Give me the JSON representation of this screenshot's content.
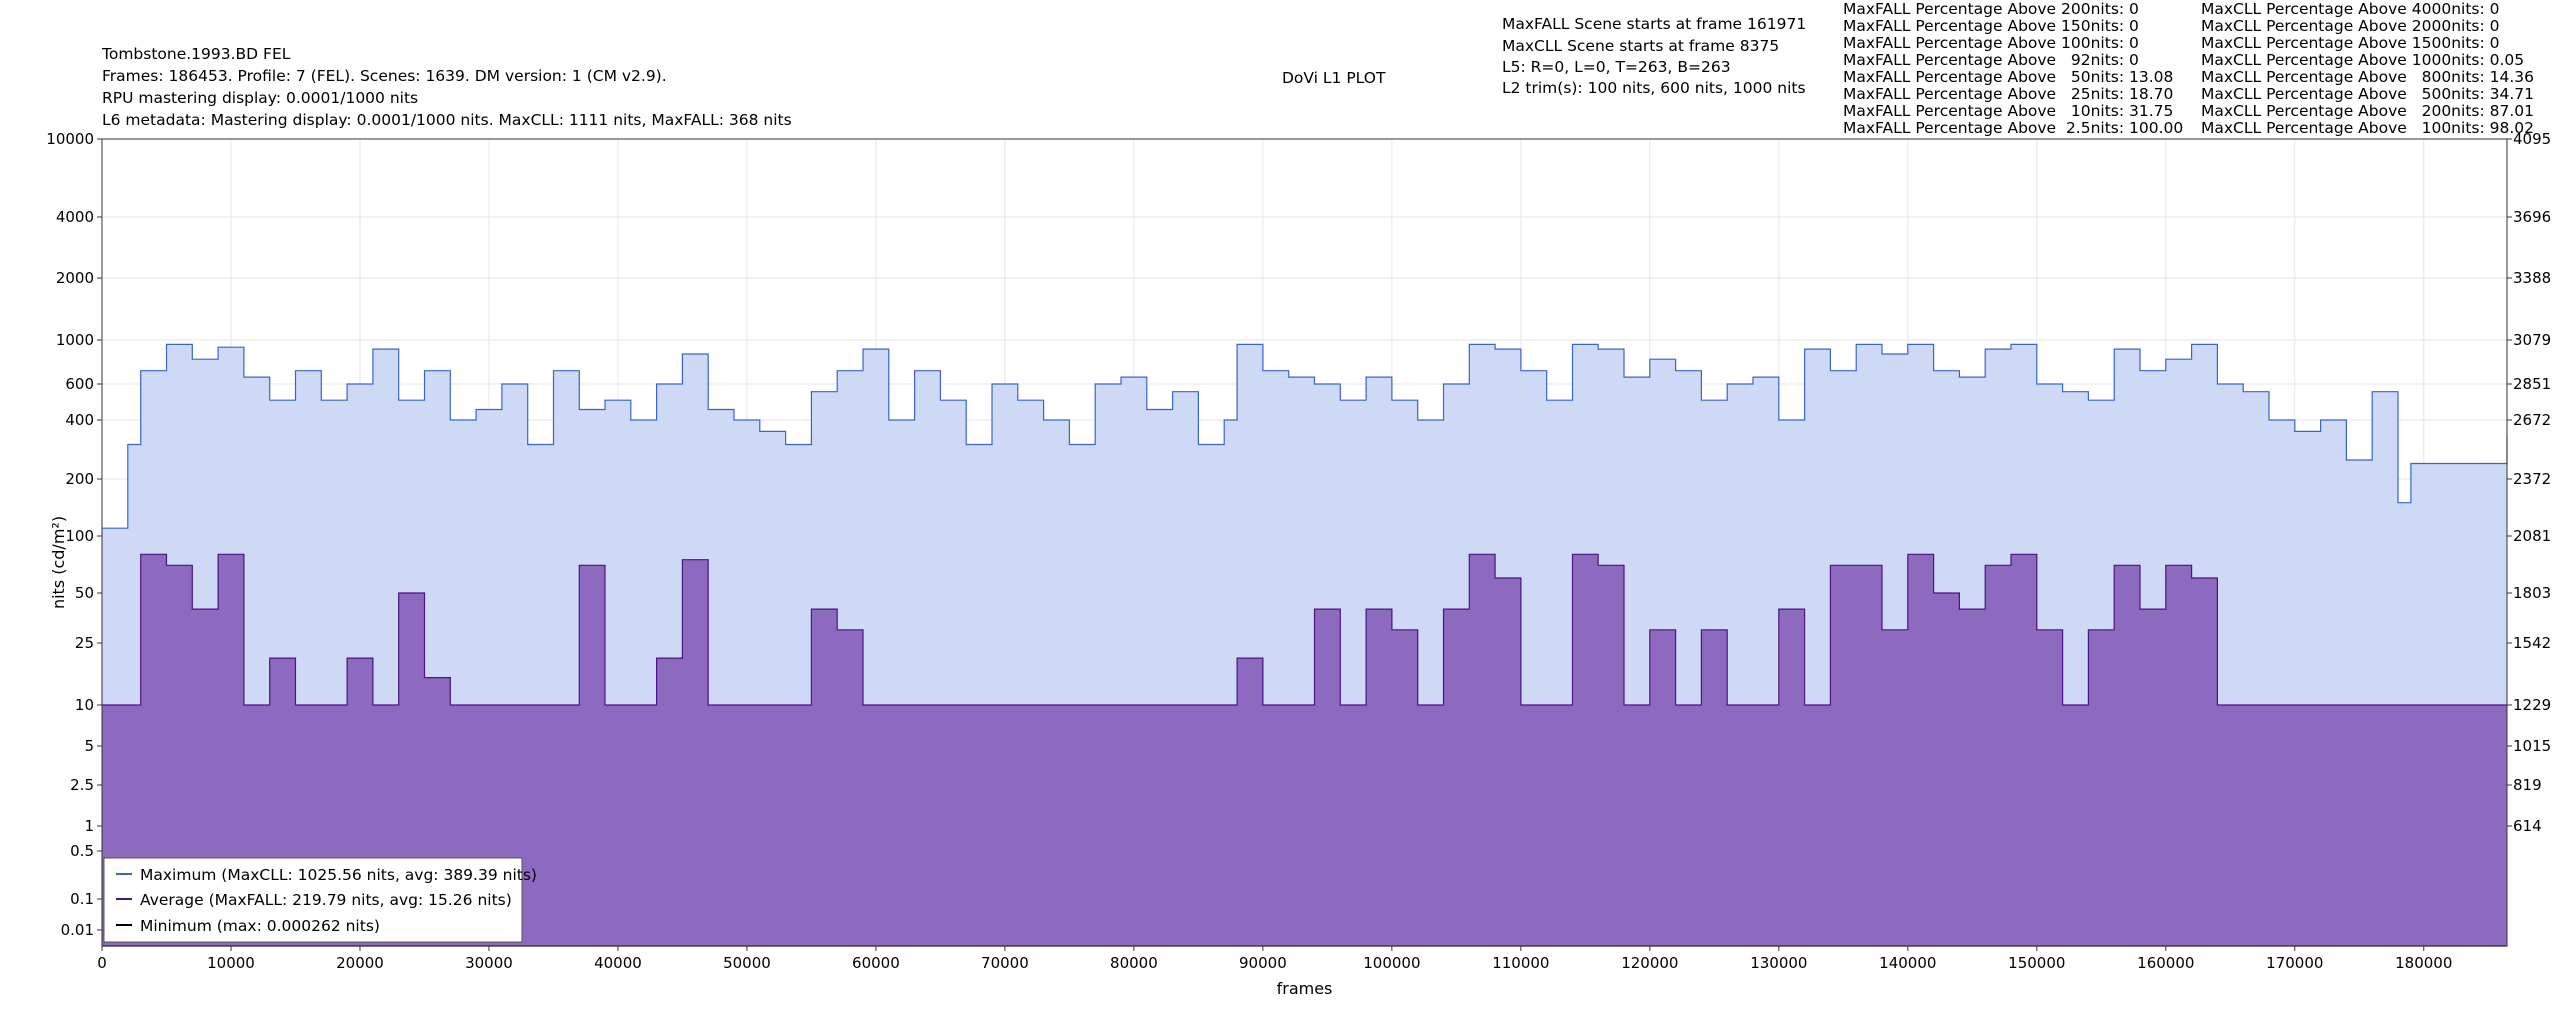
{
  "header": {
    "title": "Tombstone.1993.BD FEL",
    "line1": "Frames: 186453. Profile: 7 (FEL). Scenes: 1639. DM version: 1 (CM v2.9).",
    "line2": "RPU mastering display: 0.0001/1000 nits",
    "line3": "L6 metadata: Mastering display: 0.0001/1000 nits. MaxCLL: 1111 nits, MaxFALL: 368 nits",
    "center_title": "DoVi L1 PLOT",
    "info": [
      "MaxFALL Scene starts at frame 161971",
      "MaxCLL Scene starts at frame 8375",
      "L5: R=0, L=0, T=263, B=263",
      "L2 trim(s): 100 nits, 600 nits, 1000 nits"
    ]
  },
  "stats": {
    "maxfall": [
      "MaxFALL Percentage Above 200nits: 0",
      "MaxFALL Percentage Above 150nits: 0",
      "MaxFALL Percentage Above 100nits: 0",
      "MaxFALL Percentage Above   92nits: 0",
      "MaxFALL Percentage Above   50nits: 13.08",
      "MaxFALL Percentage Above   25nits: 18.70",
      "MaxFALL Percentage Above   10nits: 31.75",
      "MaxFALL Percentage Above  2.5nits: 100.00"
    ],
    "maxcll": [
      "MaxCLL Percentage Above 4000nits: 0",
      "MaxCLL Percentage Above 2000nits: 0",
      "MaxCLL Percentage Above 1500nits: 0",
      "MaxCLL Percentage Above 1000nits: 0.05",
      "MaxCLL Percentage Above   800nits: 14.36",
      "MaxCLL Percentage Above   500nits: 34.71",
      "MaxCLL Percentage Above   200nits: 87.01",
      "MaxCLL Percentage Above   100nits: 98.02"
    ]
  },
  "legend": {
    "max": "Maximum (MaxCLL: 1025.56 nits, avg: 389.39 nits)",
    "avg": "Average (MaxFALL: 219.79 nits, avg: 15.26 nits)",
    "min": "Minimum (max: 0.000262 nits)"
  },
  "colors": {
    "max_line": "#3a64c8",
    "max_fill": "#cdd9f5",
    "avg_line": "#4b1582",
    "avg_fill": "#8d69bf",
    "min_line": "#000000"
  },
  "chart_data": {
    "type": "area",
    "xlabel": "frames",
    "ylabel": "nits (cd/m²)",
    "xlim": [
      0,
      186453
    ],
    "x_ticks": [
      0,
      10000,
      20000,
      30000,
      40000,
      50000,
      60000,
      70000,
      80000,
      90000,
      100000,
      110000,
      120000,
      130000,
      140000,
      150000,
      160000,
      170000,
      180000
    ],
    "y_ticks": [
      {
        "label": "10000",
        "nits": 10000
      },
      {
        "label": "4000",
        "nits": 4000
      },
      {
        "label": "2000",
        "nits": 2000
      },
      {
        "label": "1000",
        "nits": 1000
      },
      {
        "label": "600",
        "nits": 600
      },
      {
        "label": "400",
        "nits": 400
      },
      {
        "label": "200",
        "nits": 200
      },
      {
        "label": "100",
        "nits": 100
      },
      {
        "label": "50",
        "nits": 50
      },
      {
        "label": "25",
        "nits": 25
      },
      {
        "label": "10",
        "nits": 10
      },
      {
        "label": "5",
        "nits": 5
      },
      {
        "label": "2.5",
        "nits": 2.5
      },
      {
        "label": "1",
        "nits": 1
      },
      {
        "label": "0.5",
        "nits": 0.5
      },
      {
        "label": "0.1",
        "nits": 0.1
      },
      {
        "label": "0.01",
        "nits": 0.01
      }
    ],
    "right_ticks": [
      {
        "label": "4095",
        "nits": 10000
      },
      {
        "label": "3696",
        "nits": 4000
      },
      {
        "label": "3388",
        "nits": 2000
      },
      {
        "label": "3079",
        "nits": 1000
      },
      {
        "label": "2851",
        "nits": 600
      },
      {
        "label": "2672",
        "nits": 400
      },
      {
        "label": "2372",
        "nits": 200
      },
      {
        "label": "2081",
        "nits": 100
      },
      {
        "label": "1803",
        "nits": 50
      },
      {
        "label": "1542",
        "nits": 25
      },
      {
        "label": "1229",
        "nits": 10
      },
      {
        "label": "1015",
        "nits": 5
      },
      {
        "label": "819",
        "nits": 2.5
      },
      {
        "label": "614",
        "nits": 1
      }
    ],
    "series": [
      {
        "name": "Maximum",
        "x": [
          0,
          2000,
          3000,
          5000,
          7000,
          9000,
          11000,
          13000,
          15000,
          17000,
          19000,
          21000,
          23000,
          25000,
          27000,
          29000,
          31000,
          33000,
          35000,
          37000,
          39000,
          41000,
          43000,
          45000,
          47000,
          49000,
          51000,
          53000,
          55000,
          57000,
          59000,
          61000,
          63000,
          65000,
          67000,
          69000,
          71000,
          73000,
          75000,
          77000,
          79000,
          81000,
          83000,
          85000,
          87000,
          88000,
          90000,
          92000,
          94000,
          96000,
          98000,
          100000,
          102000,
          104000,
          106000,
          108000,
          110000,
          112000,
          114000,
          116000,
          118000,
          120000,
          122000,
          124000,
          126000,
          128000,
          130000,
          132000,
          134000,
          136000,
          138000,
          140000,
          142000,
          144000,
          146000,
          148000,
          150000,
          152000,
          154000,
          156000,
          158000,
          160000,
          162000,
          164000,
          166000,
          168000,
          170000,
          172000,
          174000,
          176000,
          178000,
          179000,
          182000,
          185000,
          186453
        ],
        "values": [
          110,
          300,
          700,
          950,
          800,
          920,
          650,
          500,
          700,
          500,
          600,
          900,
          500,
          700,
          400,
          450,
          600,
          300,
          700,
          450,
          500,
          400,
          600,
          850,
          450,
          400,
          350,
          300,
          550,
          700,
          900,
          400,
          700,
          500,
          300,
          600,
          500,
          400,
          300,
          600,
          650,
          450,
          550,
          300,
          400,
          950,
          700,
          650,
          600,
          500,
          650,
          500,
          400,
          600,
          950,
          900,
          700,
          500,
          950,
          900,
          650,
          800,
          700,
          500,
          600,
          650,
          400,
          900,
          700,
          950,
          850,
          950,
          700,
          650,
          900,
          950,
          600,
          550,
          500,
          900,
          700,
          800,
          950,
          600,
          550,
          400,
          350,
          400,
          250,
          550,
          150,
          240,
          240,
          240,
          330
        ]
      },
      {
        "name": "Average",
        "x": [
          0,
          2000,
          3000,
          5000,
          7000,
          9000,
          11000,
          13000,
          15000,
          17000,
          19000,
          21000,
          23000,
          25000,
          27000,
          29000,
          31000,
          33000,
          35000,
          37000,
          39000,
          41000,
          43000,
          45000,
          47000,
          49000,
          51000,
          53000,
          55000,
          57000,
          59000,
          61000,
          63000,
          65000,
          67000,
          69000,
          71000,
          73000,
          75000,
          77000,
          79000,
          81000,
          83000,
          85000,
          87000,
          88000,
          90000,
          92000,
          94000,
          96000,
          98000,
          100000,
          102000,
          104000,
          106000,
          108000,
          110000,
          112000,
          114000,
          116000,
          118000,
          120000,
          122000,
          124000,
          126000,
          128000,
          130000,
          132000,
          134000,
          136000,
          138000,
          140000,
          142000,
          144000,
          146000,
          148000,
          150000,
          152000,
          154000,
          156000,
          158000,
          160000,
          162000,
          164000,
          166000,
          168000,
          170000,
          172000,
          174000,
          176000,
          178000,
          179000,
          182000,
          185000,
          186453
        ],
        "values": [
          10,
          10,
          80,
          70,
          40,
          80,
          10,
          20,
          10,
          10,
          20,
          10,
          50,
          15,
          10,
          10,
          10,
          10,
          10,
          70,
          10,
          10,
          20,
          75,
          10,
          10,
          10,
          10,
          40,
          30,
          10,
          10,
          10,
          10,
          10,
          10,
          10,
          10,
          10,
          10,
          10,
          10,
          10,
          10,
          10,
          20,
          10,
          10,
          40,
          10,
          40,
          30,
          10,
          40,
          80,
          60,
          10,
          10,
          80,
          70,
          10,
          30,
          10,
          30,
          10,
          10,
          40,
          10,
          70,
          70,
          30,
          80,
          50,
          40,
          70,
          80,
          30,
          10,
          30,
          70,
          40,
          70,
          60,
          10,
          10,
          10,
          10,
          10,
          10,
          10,
          10,
          10,
          10,
          10,
          10
        ]
      },
      {
        "name": "Minimum",
        "x": [
          0,
          186453
        ],
        "values": [
          0.0001,
          0.0001
        ]
      }
    ],
    "legend_position": "bottom-left",
    "grid": true
  }
}
